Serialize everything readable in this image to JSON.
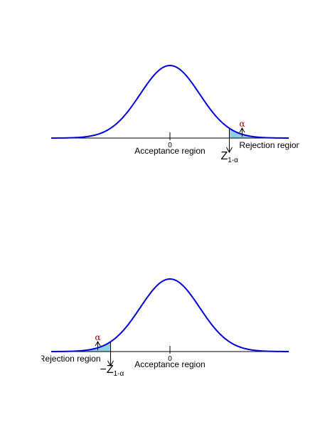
{
  "chart_data": [
    {
      "type": "area",
      "distribution": "standard normal",
      "tail": "right",
      "xlim": [
        -4,
        4
      ],
      "critical_value": 2.0,
      "center_tick_label": "0",
      "acceptance_label": "Acceptance region",
      "rejection_label": "Rejection region",
      "alpha_label": "α",
      "critical_label": "Z",
      "critical_subscript": "1-α",
      "critical_sign": "",
      "curve_color": "#0000dd",
      "shade_color": "#8ecfe6"
    },
    {
      "type": "area",
      "distribution": "standard normal",
      "tail": "left",
      "xlim": [
        -4,
        4
      ],
      "critical_value": -2.0,
      "center_tick_label": "0",
      "acceptance_label": "Acceptance region",
      "rejection_label": "Rejection region",
      "alpha_label": "α",
      "critical_label": "Z",
      "critical_subscript": "1-α",
      "critical_sign": "−",
      "curve_color": "#0000dd",
      "shade_color": "#8ecfe6"
    }
  ]
}
